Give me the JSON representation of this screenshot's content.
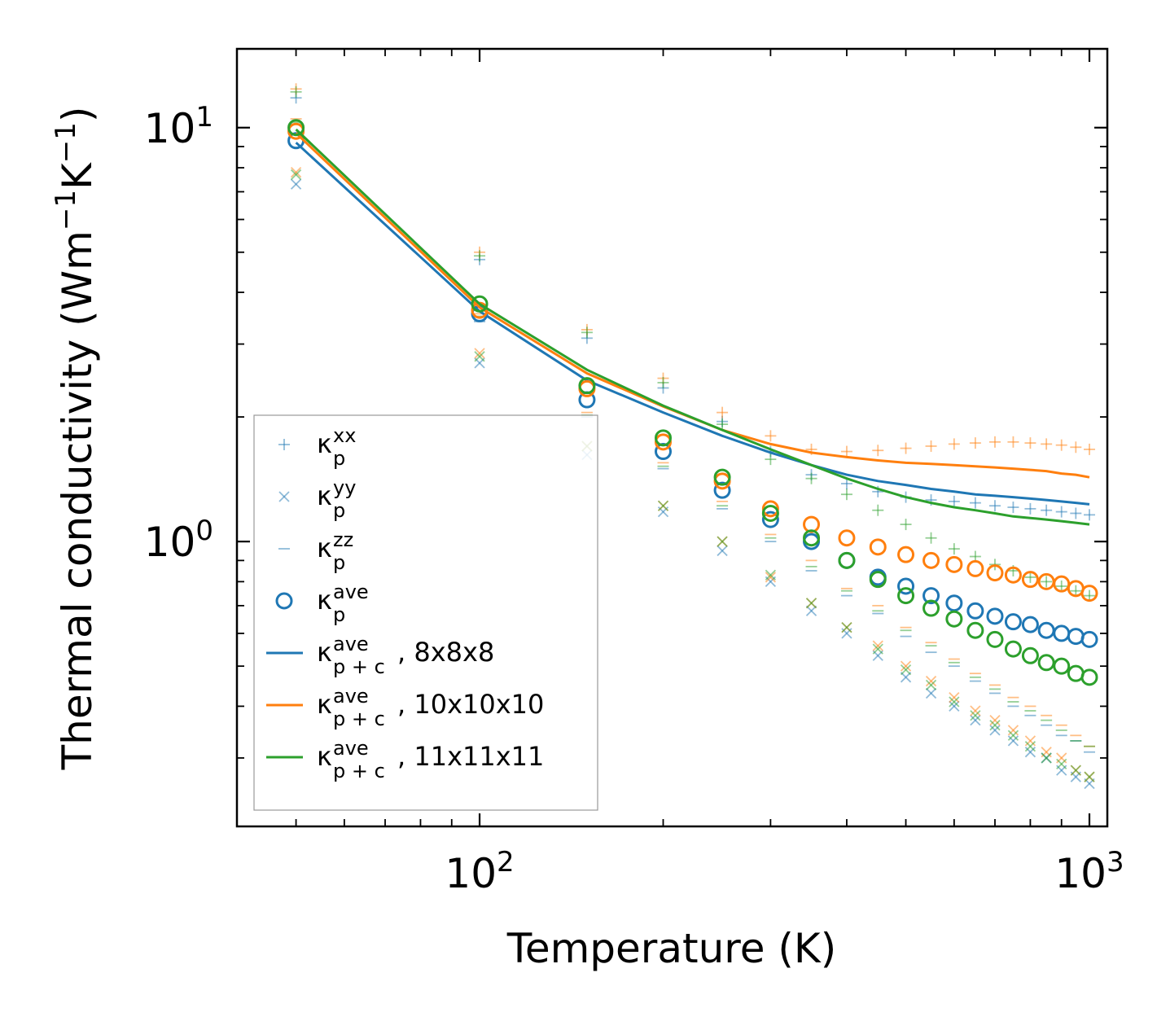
{
  "chart_data": {
    "type": "scatter",
    "xlabel": "Temperature (K)",
    "ylabel": {
      "base": "Thermal conductivity (Wm",
      "sup1": "−1",
      "mid": "K",
      "sup2": "−1",
      "end": ")"
    },
    "xscale": "log",
    "yscale": "log",
    "xlim": [
      40,
      1070
    ],
    "ylim": [
      0.205,
      15.5
    ],
    "x_ticks": [
      {
        "base": "10",
        "exp": "2",
        "value": 100
      },
      {
        "base": "10",
        "exp": "3",
        "value": 1000
      }
    ],
    "y_ticks": [
      {
        "base": "10",
        "exp": "0",
        "value": 1
      },
      {
        "base": "10",
        "exp": "1",
        "value": 10
      }
    ],
    "temperatures": [
      50,
      100,
      150,
      200,
      250,
      300,
      350,
      400,
      450,
      500,
      550,
      600,
      650,
      700,
      750,
      800,
      850,
      900,
      950,
      1000
    ],
    "legend": {
      "position": "lower-left",
      "entries": [
        {
          "symbol": "+",
          "base": "κ",
          "sub": "p",
          "sup": "xx",
          "suffix": ""
        },
        {
          "symbol": "x",
          "base": "κ",
          "sub": "p",
          "sup": "yy",
          "suffix": ""
        },
        {
          "symbol": "_",
          "base": "κ",
          "sub": "p",
          "sup": "zz",
          "suffix": ""
        },
        {
          "symbol": "o",
          "base": "κ",
          "sub": "p",
          "sup": "ave",
          "suffix": ""
        },
        {
          "symbol": "line",
          "color": "#1f77b4",
          "base": "κ",
          "sub": "p + c",
          "sup": "ave",
          "suffix": ", 8x8x8"
        },
        {
          "symbol": "line",
          "color": "#ff7f0e",
          "base": "κ",
          "sub": "p + c",
          "sup": "ave",
          "suffix": ", 10x10x10"
        },
        {
          "symbol": "line",
          "color": "#2ca02c",
          "base": "κ",
          "sub": "p + c",
          "sup": "ave",
          "suffix": ", 11x11x11"
        }
      ]
    },
    "series": [
      {
        "name": "8x8x8",
        "color": "#1f77b4",
        "kxx": [
          11.8,
          4.8,
          3.1,
          2.35,
          1.95,
          1.65,
          1.45,
          1.38,
          1.32,
          1.28,
          1.26,
          1.25,
          1.24,
          1.22,
          1.21,
          1.2,
          1.19,
          1.18,
          1.17,
          1.16
        ],
        "kyy": [
          7.3,
          2.7,
          1.62,
          1.18,
          0.95,
          0.8,
          0.68,
          0.6,
          0.53,
          0.47,
          0.43,
          0.4,
          0.37,
          0.35,
          0.33,
          0.31,
          0.3,
          0.28,
          0.27,
          0.26
        ],
        "kzz": [
          10.2,
          3.4,
          2.0,
          1.5,
          1.2,
          1.0,
          0.85,
          0.74,
          0.67,
          0.59,
          0.54,
          0.5,
          0.46,
          0.43,
          0.4,
          0.38,
          0.36,
          0.34,
          0.33,
          0.31
        ],
        "kave": [
          9.3,
          3.55,
          2.2,
          1.65,
          1.33,
          1.13,
          1.0,
          0.9,
          0.82,
          0.78,
          0.74,
          0.71,
          0.68,
          0.66,
          0.64,
          0.63,
          0.61,
          0.6,
          0.59,
          0.58
        ],
        "kpc": [
          9.2,
          3.6,
          2.45,
          2.05,
          1.8,
          1.64,
          1.53,
          1.45,
          1.4,
          1.37,
          1.34,
          1.32,
          1.3,
          1.29,
          1.28,
          1.27,
          1.26,
          1.25,
          1.24,
          1.23
        ]
      },
      {
        "name": "10x10x10",
        "color": "#ff7f0e",
        "kxx": [
          12.4,
          5.0,
          3.25,
          2.48,
          2.05,
          1.8,
          1.67,
          1.65,
          1.66,
          1.68,
          1.7,
          1.72,
          1.73,
          1.74,
          1.74,
          1.73,
          1.72,
          1.71,
          1.69,
          1.67
        ],
        "kyy": [
          7.8,
          2.85,
          1.7,
          1.22,
          1.0,
          0.82,
          0.71,
          0.62,
          0.56,
          0.5,
          0.46,
          0.42,
          0.39,
          0.37,
          0.35,
          0.33,
          0.31,
          0.3,
          0.28,
          0.27
        ],
        "kzz": [
          10.5,
          3.55,
          2.05,
          1.55,
          1.25,
          1.04,
          0.9,
          0.77,
          0.7,
          0.62,
          0.57,
          0.52,
          0.48,
          0.45,
          0.42,
          0.4,
          0.38,
          0.36,
          0.34,
          0.32
        ],
        "kave": [
          9.8,
          3.62,
          2.34,
          1.74,
          1.4,
          1.2,
          1.1,
          1.02,
          0.97,
          0.93,
          0.9,
          0.88,
          0.86,
          0.84,
          0.83,
          0.81,
          0.8,
          0.79,
          0.77,
          0.75
        ],
        "kpc": [
          9.7,
          3.68,
          2.55,
          2.12,
          1.86,
          1.72,
          1.64,
          1.6,
          1.57,
          1.55,
          1.54,
          1.53,
          1.52,
          1.51,
          1.5,
          1.49,
          1.48,
          1.46,
          1.45,
          1.43
        ]
      },
      {
        "name": "11x11x11",
        "color": "#2ca02c",
        "kxx": [
          12.2,
          4.9,
          3.2,
          2.42,
          1.92,
          1.58,
          1.42,
          1.3,
          1.19,
          1.1,
          1.02,
          0.96,
          0.92,
          0.88,
          0.85,
          0.82,
          0.8,
          0.78,
          0.76,
          0.74
        ],
        "kyy": [
          7.7,
          2.8,
          1.7,
          1.22,
          1.0,
          0.83,
          0.71,
          0.62,
          0.55,
          0.49,
          0.45,
          0.41,
          0.38,
          0.36,
          0.34,
          0.32,
          0.3,
          0.29,
          0.28,
          0.27
        ],
        "kzz": [
          10.3,
          3.5,
          2.02,
          1.52,
          1.22,
          1.02,
          0.87,
          0.76,
          0.68,
          0.61,
          0.56,
          0.51,
          0.47,
          0.44,
          0.41,
          0.39,
          0.37,
          0.35,
          0.33,
          0.32
        ],
        "kave": [
          10.0,
          3.75,
          2.38,
          1.78,
          1.43,
          1.17,
          1.02,
          0.9,
          0.81,
          0.74,
          0.69,
          0.65,
          0.61,
          0.58,
          0.55,
          0.53,
          0.51,
          0.5,
          0.48,
          0.47
        ],
        "kpc": [
          9.9,
          3.75,
          2.6,
          2.13,
          1.86,
          1.67,
          1.53,
          1.42,
          1.34,
          1.28,
          1.24,
          1.21,
          1.19,
          1.17,
          1.15,
          1.14,
          1.13,
          1.12,
          1.11,
          1.1
        ]
      }
    ]
  }
}
